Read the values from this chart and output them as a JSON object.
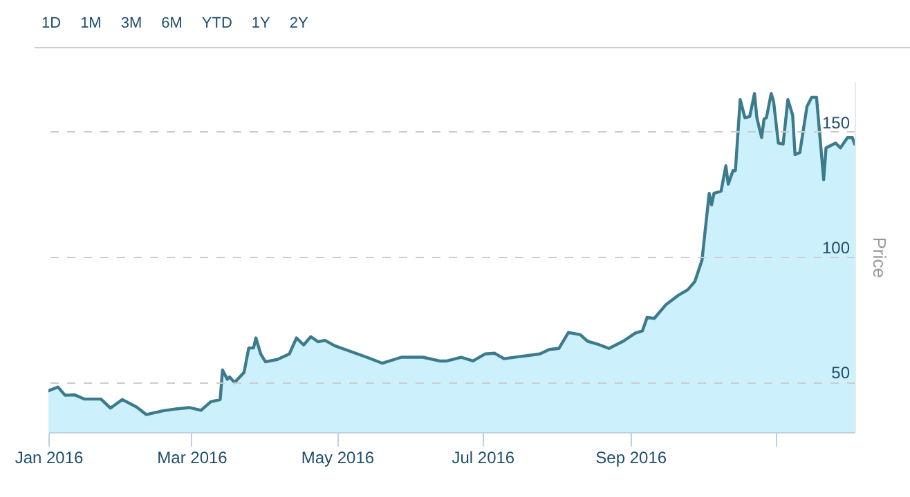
{
  "chart_data": {
    "type": "area",
    "ylabel": "Price",
    "annotations": [
      "1D",
      "1M",
      "3M",
      "6M",
      "YTD",
      "1Y",
      "2Y"
    ],
    "xlim": [
      "2016-01-01",
      "2016-12-04"
    ],
    "xticks": [
      {
        "value": "2016-01-01",
        "label": "Jan 2016"
      },
      {
        "value": "2016-03-01",
        "label": "Mar 2016"
      },
      {
        "value": "2016-05-01",
        "label": "May 2016"
      },
      {
        "value": "2016-07-01",
        "label": "Jul 2016"
      },
      {
        "value": "2016-09-01",
        "label": "Sep 2016"
      },
      {
        "value": "2016-11-01",
        "label": null
      }
    ],
    "ylim": [
      30,
      170
    ],
    "yticks": [
      50,
      100,
      150
    ],
    "grid": "y",
    "x": [
      "2016-01-01",
      "2016-01-05",
      "2016-01-08",
      "2016-01-12",
      "2016-01-16",
      "2016-01-23",
      "2016-01-27",
      "2016-02-01",
      "2016-02-07",
      "2016-02-11",
      "2016-02-18",
      "2016-02-23",
      "2016-02-29",
      "2016-03-05",
      "2016-03-09",
      "2016-03-13",
      "2016-03-14",
      "2016-03-16",
      "2016-03-17",
      "2016-03-19",
      "2016-03-23",
      "2016-03-25",
      "2016-03-27",
      "2016-03-28",
      "2016-03-30",
      "2016-04-01",
      "2016-04-06",
      "2016-04-11",
      "2016-04-14",
      "2016-04-17",
      "2016-04-20",
      "2016-04-23",
      "2016-04-26",
      "2016-04-30",
      "2016-05-07",
      "2016-05-14",
      "2016-05-20",
      "2016-05-28",
      "2016-06-06",
      "2016-06-13",
      "2016-06-16",
      "2016-06-22",
      "2016-06-27",
      "2016-07-02",
      "2016-07-06",
      "2016-07-10",
      "2016-07-17",
      "2016-07-25",
      "2016-07-29",
      "2016-08-02",
      "2016-08-06",
      "2016-08-11",
      "2016-08-14",
      "2016-08-18",
      "2016-08-23",
      "2016-08-29",
      "2016-09-03",
      "2016-09-06",
      "2016-09-08",
      "2016-09-11",
      "2016-09-16",
      "2016-09-21",
      "2016-09-25",
      "2016-09-28",
      "2016-10-01",
      "2016-10-04",
      "2016-10-05",
      "2016-10-06",
      "2016-10-09",
      "2016-10-11",
      "2016-10-12",
      "2016-10-14",
      "2016-10-15",
      "2016-10-17",
      "2016-10-19",
      "2016-10-21",
      "2016-10-23",
      "2016-10-24",
      "2016-10-26",
      "2016-10-27",
      "2016-10-28",
      "2016-10-30",
      "2016-10-31",
      "2016-11-02",
      "2016-11-04",
      "2016-11-06",
      "2016-11-08",
      "2016-11-09",
      "2016-11-11",
      "2016-11-14",
      "2016-11-16",
      "2016-11-18",
      "2016-11-21",
      "2016-11-22",
      "2016-11-26",
      "2016-11-28",
      "2016-12-01",
      "2016-12-03",
      "2016-12-04"
    ],
    "series": [
      {
        "color": "#3d7b8c",
        "values": [
          46.5,
          48,
          44.7,
          44.9,
          43.2,
          43.2,
          39.6,
          43,
          40,
          37,
          38.5,
          39.2,
          39.8,
          38.7,
          42.1,
          43,
          54.8,
          51.1,
          52,
          49.8,
          53.8,
          63.6,
          63.6,
          67.6,
          61.2,
          58.1,
          59,
          61.2,
          67.6,
          64.8,
          68.1,
          66.1,
          66.6,
          64.5,
          62.1,
          59.7,
          57.5,
          59.9,
          59.9,
          58.4,
          58.4,
          59.9,
          58.4,
          61.2,
          61.5,
          59.3,
          60.2,
          61.2,
          63,
          63.4,
          69.8,
          68.9,
          66.3,
          65.2,
          63.4,
          66.3,
          69.5,
          70.4,
          75.8,
          75.4,
          81,
          84.6,
          86.8,
          90.1,
          98.7,
          125.3,
          120.7,
          125.3,
          126.2,
          136.3,
          129,
          134.4,
          134.4,
          162.8,
          155.5,
          156,
          165.2,
          155.5,
          147.6,
          155,
          155.5,
          165.2,
          162,
          145.4,
          145,
          162.8,
          156.5,
          140.8,
          141.6,
          160,
          163.7,
          163.7,
          130.8,
          143.5,
          145.4,
          143.5,
          147.6,
          147.6,
          145
        ]
      }
    ]
  }
}
